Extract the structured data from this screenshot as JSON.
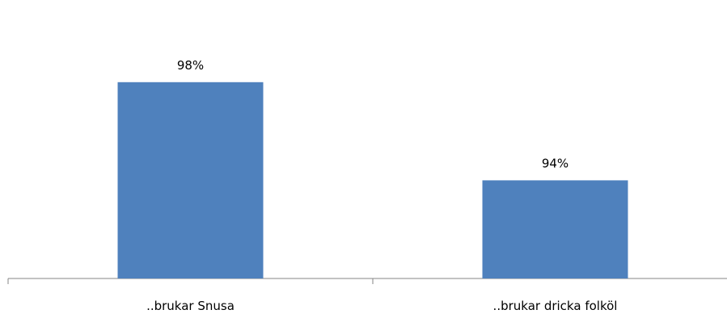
{
  "chart_data": {
    "type": "bar",
    "categories": [
      "..brukar Snusa",
      "..brukar dricka folköl"
    ],
    "values": [
      98,
      94
    ],
    "data_labels": [
      "98%",
      "94%"
    ],
    "ylim": [
      90,
      100
    ],
    "grid": false,
    "legend": "none",
    "colors": {
      "bar": "#4F81BD",
      "axis": "#868686"
    }
  }
}
